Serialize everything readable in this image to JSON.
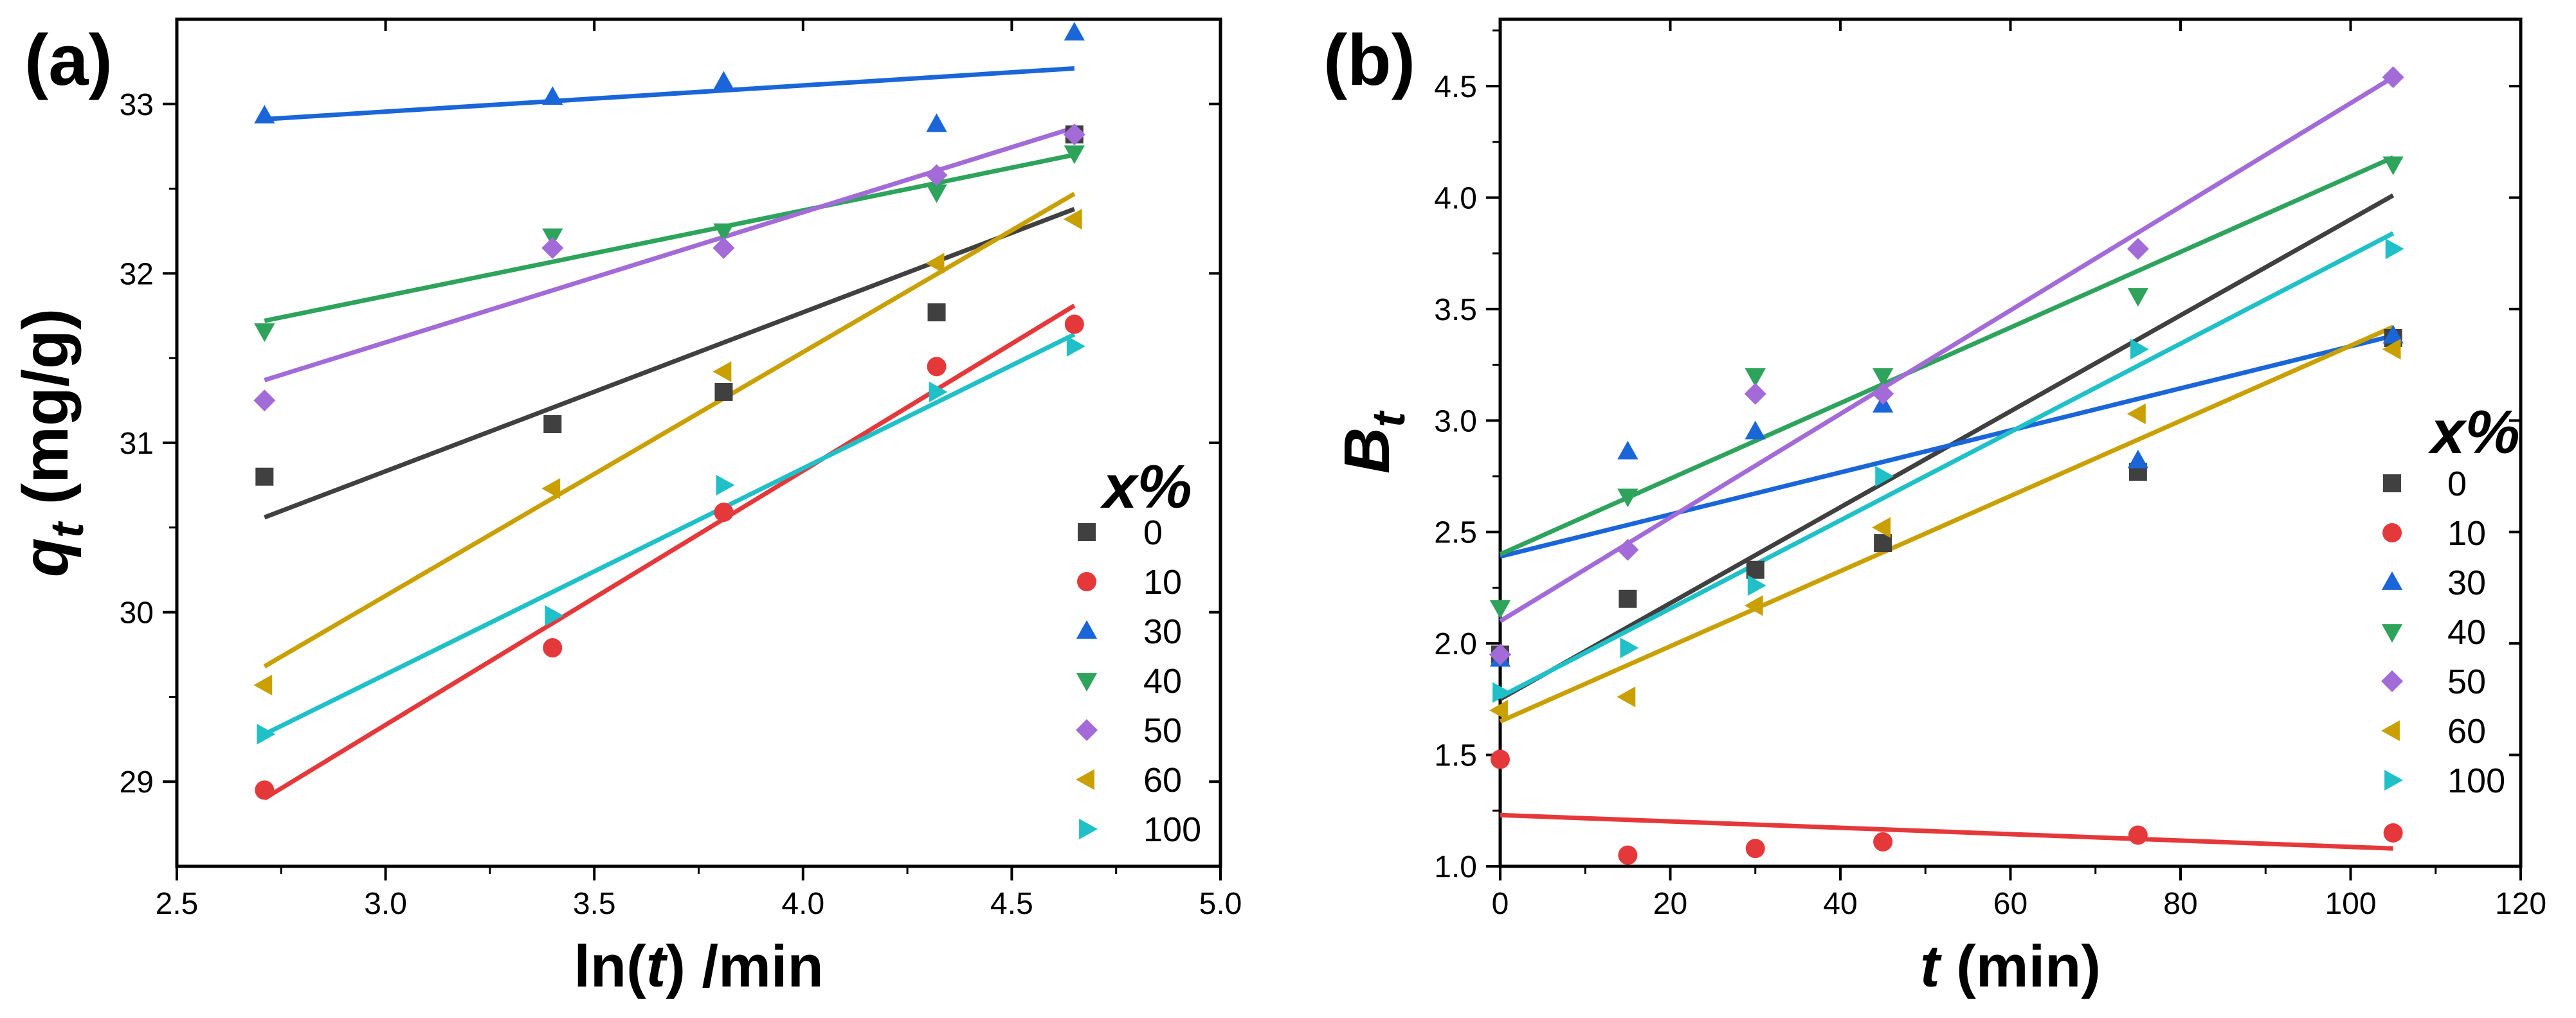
{
  "panels": {
    "a_label": "(a)",
    "b_label": "(b)"
  },
  "chart_data": [
    {
      "id": "a",
      "type": "scatter",
      "title": "",
      "xlabel_plain": "ln(",
      "xlabel_italic": "t",
      "xlabel_rest": ") /min",
      "ylabel_main": "q",
      "ylabel_sub": "t",
      "ylabel_unit": " (mg/g)",
      "xlim": [
        2.5,
        5.0
      ],
      "ylim": [
        28.5,
        33.5
      ],
      "xticks": [
        2.5,
        3.0,
        3.5,
        4.0,
        4.5,
        5.0
      ],
      "xtick_labels": [
        "2.5",
        "3.0",
        "3.5",
        "4.0",
        "4.5",
        "5.0"
      ],
      "yticks": [
        29,
        30,
        31,
        32,
        33
      ],
      "ytick_labels": [
        "29",
        "30",
        "31",
        "32",
        "33"
      ],
      "legend_title": "x%",
      "legend_position": "right",
      "fit_x_range": [
        2.71,
        4.65
      ],
      "series": [
        {
          "name": "0",
          "marker": "square",
          "color": "#404040",
          "x": [
            2.71,
            3.4,
            3.81,
            4.32,
            4.65
          ],
          "y": [
            30.8,
            31.11,
            31.3,
            31.77,
            32.82
          ],
          "fit": [
            30.56,
            32.38
          ]
        },
        {
          "name": "10",
          "marker": "circle",
          "color": "#e5383b",
          "x": [
            2.71,
            3.4,
            3.81,
            4.32,
            4.65
          ],
          "y": [
            28.95,
            29.79,
            30.59,
            31.45,
            31.7
          ],
          "fit": [
            28.9,
            31.81
          ]
        },
        {
          "name": "30",
          "marker": "triangle-up",
          "color": "#1a66d9",
          "x": [
            2.71,
            3.4,
            3.81,
            4.32,
            4.65
          ],
          "y": [
            32.93,
            33.04,
            33.13,
            32.88,
            33.42
          ],
          "fit": [
            32.91,
            33.21
          ]
        },
        {
          "name": "40",
          "marker": "triangle-down",
          "color": "#2ea35c",
          "x": [
            2.71,
            3.4,
            3.81,
            4.32,
            4.65
          ],
          "y": [
            31.66,
            32.22,
            32.25,
            32.48,
            32.71
          ],
          "fit": [
            31.72,
            32.7
          ]
        },
        {
          "name": "50",
          "marker": "diamond",
          "color": "#a26bd8",
          "x": [
            2.71,
            3.4,
            3.81,
            4.32,
            4.65
          ],
          "y": [
            31.25,
            32.15,
            32.15,
            32.58,
            32.82
          ],
          "fit": [
            31.37,
            32.86
          ]
        },
        {
          "name": "60",
          "marker": "triangle-left",
          "color": "#c9a000",
          "x": [
            2.71,
            3.4,
            3.81,
            4.32,
            4.65
          ],
          "y": [
            29.57,
            30.73,
            31.42,
            32.06,
            32.32
          ],
          "fit": [
            29.68,
            32.47
          ]
        },
        {
          "name": "100",
          "marker": "triangle-right",
          "color": "#1fc0c8",
          "x": [
            2.71,
            3.4,
            3.81,
            4.32,
            4.65
          ],
          "y": [
            29.28,
            29.98,
            30.75,
            31.3,
            31.57
          ],
          "fit": [
            29.28,
            31.64
          ]
        }
      ]
    },
    {
      "id": "b",
      "type": "scatter",
      "title": "",
      "xlabel_italic": "t",
      "xlabel_rest": " (min)",
      "ylabel_main": "B",
      "ylabel_sub": "t",
      "xlim": [
        0,
        120
      ],
      "ylim": [
        1.0,
        4.8
      ],
      "xticks": [
        0,
        20,
        40,
        60,
        80,
        100,
        120
      ],
      "xtick_labels": [
        "0",
        "20",
        "40",
        "60",
        "80",
        "100",
        "120"
      ],
      "yticks": [
        1.0,
        1.5,
        2.0,
        2.5,
        3.0,
        3.5,
        4.0,
        4.5
      ],
      "ytick_labels": [
        "1.0",
        "1.5",
        "2.0",
        "2.5",
        "3.0",
        "3.5",
        "4.0",
        "4.5"
      ],
      "legend_title": "x%",
      "legend_position": "right",
      "fit_x_range": [
        0,
        105
      ],
      "series": [
        {
          "name": "0",
          "marker": "square",
          "color": "#404040",
          "x": [
            0,
            15,
            30,
            45,
            75,
            105
          ],
          "y": [
            1.95,
            2.2,
            2.33,
            2.45,
            2.77,
            3.37
          ],
          "fit": [
            1.75,
            4.01
          ]
        },
        {
          "name": "10",
          "marker": "circle",
          "color": "#e5383b",
          "x": [
            0,
            15,
            30,
            45,
            75,
            105
          ],
          "y": [
            1.48,
            1.05,
            1.08,
            1.11,
            1.14,
            1.15
          ],
          "fit": [
            1.23,
            1.08
          ]
        },
        {
          "name": "30",
          "marker": "triangle-up",
          "color": "#1a66d9",
          "x": [
            0,
            15,
            30,
            45,
            75,
            105
          ],
          "y": [
            1.93,
            2.86,
            2.95,
            3.07,
            2.82,
            3.38
          ],
          "fit": [
            2.39,
            3.38
          ]
        },
        {
          "name": "40",
          "marker": "triangle-down",
          "color": "#2ea35c",
          "x": [
            0,
            15,
            30,
            45,
            75,
            105
          ],
          "y": [
            2.16,
            2.66,
            3.2,
            3.2,
            3.56,
            4.15
          ],
          "fit": [
            2.4,
            4.18
          ]
        },
        {
          "name": "50",
          "marker": "diamond",
          "color": "#a26bd8",
          "x": [
            0,
            15,
            30,
            45,
            75,
            105
          ],
          "y": [
            1.95,
            2.42,
            3.12,
            3.12,
            3.77,
            4.54
          ],
          "fit": [
            2.1,
            4.54
          ]
        },
        {
          "name": "60",
          "marker": "triangle-left",
          "color": "#c9a000",
          "x": [
            0,
            15,
            30,
            45,
            75,
            105
          ],
          "y": [
            1.7,
            1.76,
            2.17,
            2.52,
            3.03,
            3.32
          ],
          "fit": [
            1.65,
            3.42
          ]
        },
        {
          "name": "100",
          "marker": "triangle-right",
          "color": "#1fc0c8",
          "x": [
            0,
            15,
            30,
            45,
            75,
            105
          ],
          "y": [
            1.78,
            1.98,
            2.26,
            2.75,
            3.32,
            3.77
          ],
          "fit": [
            1.76,
            3.84
          ]
        }
      ]
    }
  ]
}
